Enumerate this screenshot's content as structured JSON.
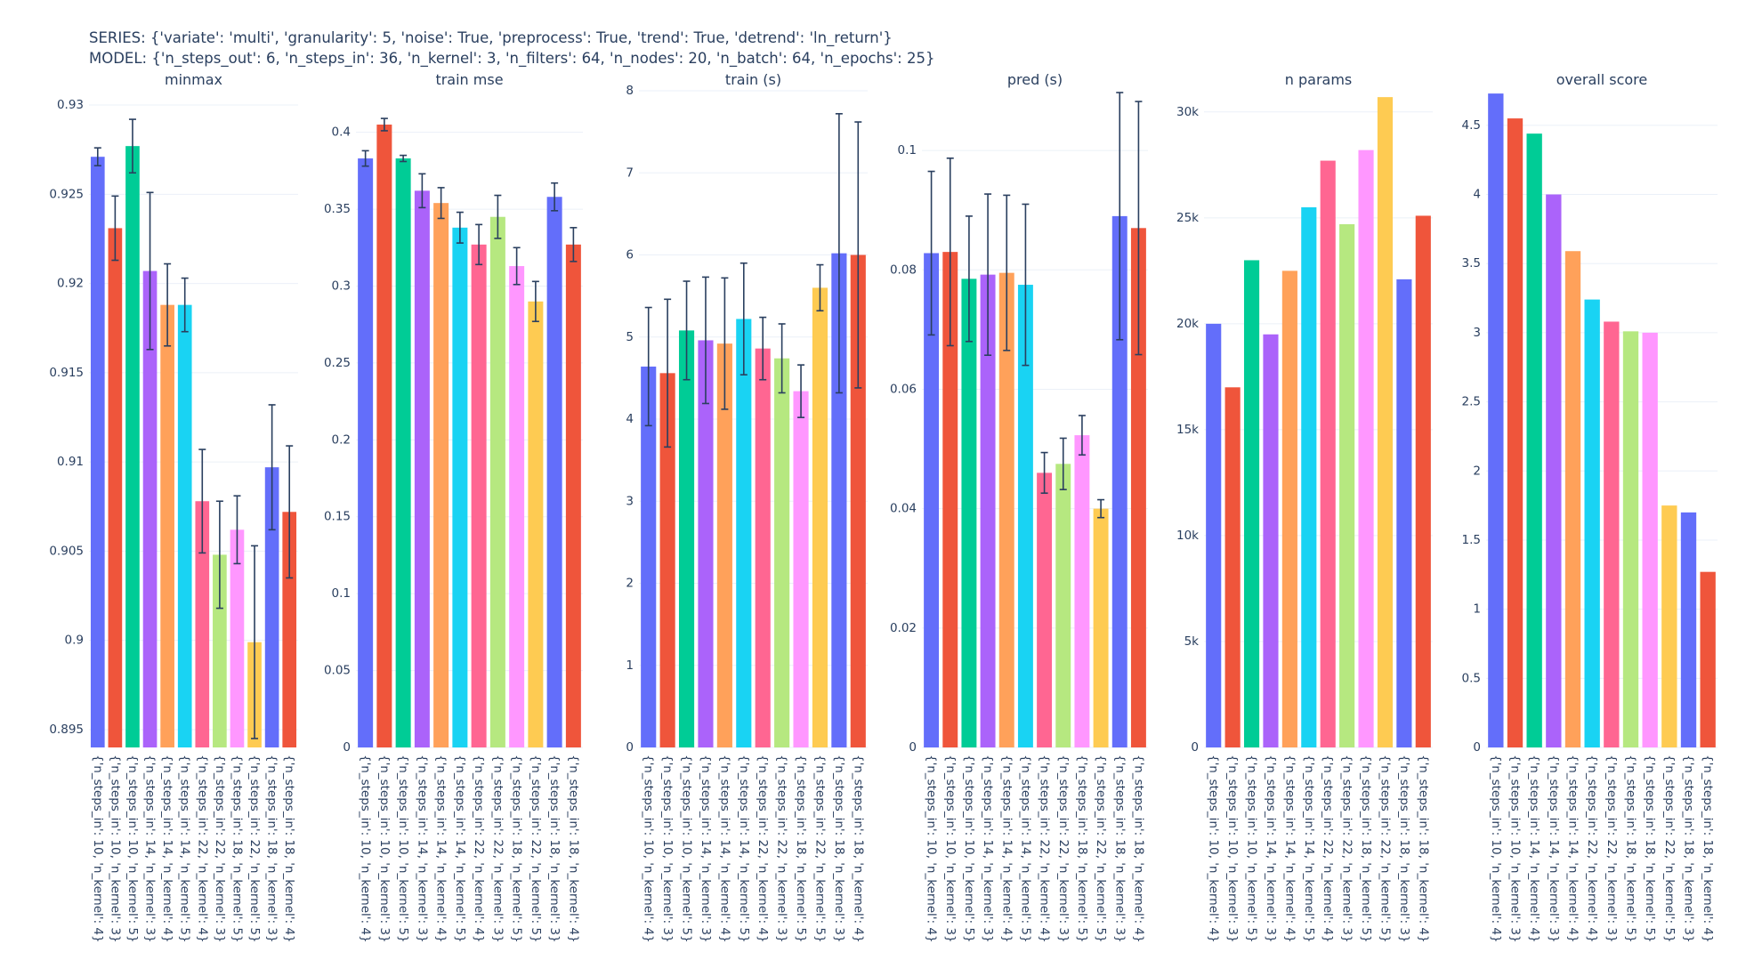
{
  "header": {
    "series_line": "SERIES: {'variate': 'multi', 'granularity': 5, 'noise': True, 'preprocess': True, 'trend': True, 'detrend': 'ln_return'}",
    "model_line": "MODEL: {'n_steps_out': 6, 'n_steps_in': 36, 'n_kernel': 3, 'n_filters': 64, 'n_nodes': 20, 'n_batch': 64, 'n_epochs': 25}"
  },
  "colors": [
    "#636efa",
    "#ef553b",
    "#00cc96",
    "#ab63fa",
    "#ffa15a",
    "#19d3f3",
    "#ff6692",
    "#b6e880",
    "#ff97ff",
    "#fecb52"
  ],
  "chart_data": [
    {
      "type": "bar",
      "title": "minmax",
      "categories": [
        "{'n_steps_in': 10, 'n_kernel': 4}",
        "{'n_steps_in': 10, 'n_kernel': 3}",
        "{'n_steps_in': 10, 'n_kernel': 5}",
        "{'n_steps_in': 14, 'n_kernel': 3}",
        "{'n_steps_in': 14, 'n_kernel': 4}",
        "{'n_steps_in': 14, 'n_kernel': 5}",
        "{'n_steps_in': 22, 'n_kernel': 4}",
        "{'n_steps_in': 22, 'n_kernel': 3}",
        "{'n_steps_in': 18, 'n_kernel': 5}",
        "{'n_steps_in': 22, 'n_kernel': 5}",
        "{'n_steps_in': 18, 'n_kernel': 3}",
        "{'n_steps_in': 18, 'n_kernel': 4}"
      ],
      "values": [
        0.9271,
        0.9231,
        0.9277,
        0.9207,
        0.9188,
        0.9188,
        0.9078,
        0.9048,
        0.9062,
        0.8999,
        0.9097,
        0.9072
      ],
      "errors": [
        0.0005,
        0.0018,
        0.0015,
        0.0044,
        0.0023,
        0.0015,
        0.0029,
        0.003,
        0.0019,
        0.0054,
        0.0035,
        0.0037
      ],
      "ylim": [
        0.894,
        0.9308
      ],
      "yticks": [
        0.895,
        0.9,
        0.905,
        0.91,
        0.915,
        0.92,
        0.925,
        0.93
      ],
      "ytick_labels": [
        "0.895",
        "0.9",
        "0.905",
        "0.91",
        "0.915",
        "0.92",
        "0.925",
        "0.93"
      ]
    },
    {
      "type": "bar",
      "title": "train mse",
      "categories": [
        "{'n_steps_in': 10, 'n_kernel': 4}",
        "{'n_steps_in': 10, 'n_kernel': 3}",
        "{'n_steps_in': 10, 'n_kernel': 5}",
        "{'n_steps_in': 14, 'n_kernel': 3}",
        "{'n_steps_in': 14, 'n_kernel': 4}",
        "{'n_steps_in': 14, 'n_kernel': 5}",
        "{'n_steps_in': 22, 'n_kernel': 4}",
        "{'n_steps_in': 22, 'n_kernel': 3}",
        "{'n_steps_in': 18, 'n_kernel': 5}",
        "{'n_steps_in': 22, 'n_kernel': 5}",
        "{'n_steps_in': 18, 'n_kernel': 3}",
        "{'n_steps_in': 18, 'n_kernel': 4}"
      ],
      "values": [
        0.383,
        0.405,
        0.383,
        0.362,
        0.354,
        0.338,
        0.327,
        0.345,
        0.313,
        0.29,
        0.358,
        0.327
      ],
      "errors": [
        0.005,
        0.004,
        0.002,
        0.011,
        0.01,
        0.01,
        0.013,
        0.014,
        0.012,
        0.013,
        0.009,
        0.011
      ],
      "ylim": [
        0,
        0.427
      ],
      "yticks": [
        0,
        0.05,
        0.1,
        0.15,
        0.2,
        0.25,
        0.3,
        0.35,
        0.4
      ],
      "ytick_labels": [
        "0",
        "0.05",
        "0.1",
        "0.15",
        "0.2",
        "0.25",
        "0.3",
        "0.35",
        "0.4"
      ]
    },
    {
      "type": "bar",
      "title": "train (s)",
      "categories": [
        "{'n_steps_in': 10, 'n_kernel': 4}",
        "{'n_steps_in': 10, 'n_kernel': 3}",
        "{'n_steps_in': 10, 'n_kernel': 5}",
        "{'n_steps_in': 14, 'n_kernel': 3}",
        "{'n_steps_in': 14, 'n_kernel': 4}",
        "{'n_steps_in': 14, 'n_kernel': 5}",
        "{'n_steps_in': 22, 'n_kernel': 4}",
        "{'n_steps_in': 22, 'n_kernel': 3}",
        "{'n_steps_in': 18, 'n_kernel': 5}",
        "{'n_steps_in': 22, 'n_kernel': 5}",
        "{'n_steps_in': 18, 'n_kernel': 3}",
        "{'n_steps_in': 18, 'n_kernel': 4}"
      ],
      "values": [
        4.64,
        4.56,
        5.08,
        4.96,
        4.92,
        5.22,
        4.86,
        4.74,
        4.34,
        5.6,
        6.02,
        6.0
      ],
      "errors": [
        0.72,
        0.9,
        0.6,
        0.77,
        0.8,
        0.68,
        0.38,
        0.42,
        0.32,
        0.28,
        1.7,
        1.62
      ],
      "ylim": [
        0,
        8
      ],
      "yticks": [
        0,
        1,
        2,
        3,
        4,
        5,
        6,
        7,
        8
      ],
      "ytick_labels": [
        "0",
        "1",
        "2",
        "3",
        "4",
        "5",
        "6",
        "7",
        "8"
      ]
    },
    {
      "type": "bar",
      "title": "pred (s)",
      "categories": [
        "{'n_steps_in': 10, 'n_kernel': 4}",
        "{'n_steps_in': 10, 'n_kernel': 3}",
        "{'n_steps_in': 10, 'n_kernel': 5}",
        "{'n_steps_in': 14, 'n_kernel': 3}",
        "{'n_steps_in': 14, 'n_kernel': 4}",
        "{'n_steps_in': 14, 'n_kernel': 5}",
        "{'n_steps_in': 22, 'n_kernel': 4}",
        "{'n_steps_in': 22, 'n_kernel': 3}",
        "{'n_steps_in': 18, 'n_kernel': 5}",
        "{'n_steps_in': 22, 'n_kernel': 5}",
        "{'n_steps_in': 18, 'n_kernel': 3}",
        "{'n_steps_in': 18, 'n_kernel': 4}"
      ],
      "values": [
        0.0828,
        0.083,
        0.0785,
        0.0792,
        0.0795,
        0.0775,
        0.046,
        0.0475,
        0.0523,
        0.04,
        0.089,
        0.087
      ],
      "errors": [
        0.0137,
        0.0157,
        0.0105,
        0.0135,
        0.013,
        0.0135,
        0.0034,
        0.0043,
        0.0033,
        0.0015,
        0.0207,
        0.0212
      ],
      "ylim": [
        0,
        0.11
      ],
      "yticks": [
        0,
        0.02,
        0.04,
        0.06,
        0.08,
        0.1
      ],
      "ytick_labels": [
        "0",
        "0.02",
        "0.04",
        "0.06",
        "0.08",
        "0.1"
      ]
    },
    {
      "type": "bar",
      "title": "n params",
      "categories": [
        "{'n_steps_in': 10, 'n_kernel': 4}",
        "{'n_steps_in': 10, 'n_kernel': 3}",
        "{'n_steps_in': 10, 'n_kernel': 5}",
        "{'n_steps_in': 14, 'n_kernel': 3}",
        "{'n_steps_in': 14, 'n_kernel': 4}",
        "{'n_steps_in': 14, 'n_kernel': 5}",
        "{'n_steps_in': 22, 'n_kernel': 4}",
        "{'n_steps_in': 22, 'n_kernel': 3}",
        "{'n_steps_in': 18, 'n_kernel': 5}",
        "{'n_steps_in': 22, 'n_kernel': 5}",
        "{'n_steps_in': 18, 'n_kernel': 3}",
        "{'n_steps_in': 18, 'n_kernel': 4}"
      ],
      "values": [
        20000,
        17000,
        23000,
        19500,
        22500,
        25500,
        27700,
        24700,
        28200,
        30700,
        22100,
        25100
      ],
      "ylim": [
        0,
        31000
      ],
      "yticks": [
        0,
        5000,
        10000,
        15000,
        20000,
        25000,
        30000
      ],
      "ytick_labels": [
        "0",
        "5k",
        "10k",
        "15k",
        "20k",
        "25k",
        "30k"
      ]
    },
    {
      "type": "bar",
      "title": "overall score",
      "categories": [
        "{'n_steps_in': 10, 'n_kernel': 4}",
        "{'n_steps_in': 10, 'n_kernel': 3}",
        "{'n_steps_in': 14, 'n_kernel': 4}",
        "{'n_steps_in': 14, 'n_kernel': 3}",
        "{'n_steps_in': 14, 'n_kernel': 4}",
        "{'n_steps_in': 22, 'n_kernel': 4}",
        "{'n_steps_in': 22, 'n_kernel': 3}",
        "{'n_steps_in': 18, 'n_kernel': 5}",
        "{'n_steps_in': 18, 'n_kernel': 5}",
        "{'n_steps_in': 22, 'n_kernel': 5}",
        "{'n_steps_in': 18, 'n_kernel': 3}",
        "{'n_steps_in': 18, 'n_kernel': 4}"
      ],
      "values": [
        4.73,
        4.55,
        4.44,
        4.0,
        3.59,
        3.24,
        3.08,
        3.01,
        3.0,
        1.75,
        1.7,
        1.27
      ],
      "ylim": [
        0,
        4.75
      ],
      "yticks": [
        0,
        0.5,
        1,
        1.5,
        2,
        2.5,
        3,
        3.5,
        4,
        4.5
      ],
      "ytick_labels": [
        "0",
        "0.5",
        "1",
        "1.5",
        "2",
        "2.5",
        "3",
        "3.5",
        "4",
        "4.5"
      ]
    }
  ]
}
